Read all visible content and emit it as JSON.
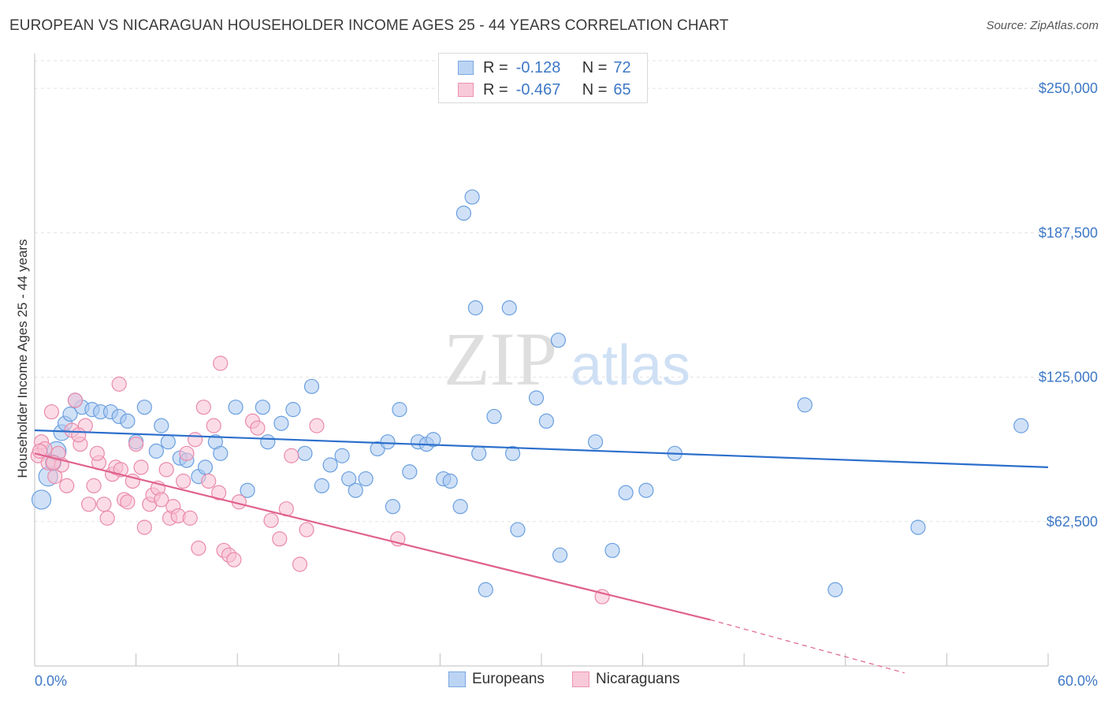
{
  "header": {
    "title": "EUROPEAN VS NICARAGUAN HOUSEHOLDER INCOME AGES 25 - 44 YEARS CORRELATION CHART",
    "source": "Source: ZipAtlas.com"
  },
  "watermark": {
    "zip": "ZIP",
    "atlas": "atlas"
  },
  "legend": {
    "rows": [
      {
        "r_label": "R =",
        "r_value": "-0.128",
        "n_label": "N =",
        "n_value": "72"
      },
      {
        "r_label": "R =",
        "r_value": "-0.467",
        "n_label": "N =",
        "n_value": "65"
      }
    ]
  },
  "bottom_legend": {
    "europeans": "Europeans",
    "nicaraguans": "Nicaraguans"
  },
  "colors": {
    "blue_fill": "#a9c8f0",
    "blue_stroke": "#6a9fe0",
    "blue_line": "#2c6fcc",
    "pink_fill": "#f7bfd1",
    "pink_stroke": "#ea8aab",
    "pink_line": "#e0628e",
    "tick_text": "#3d78c6",
    "grid": "#e3e3e3"
  },
  "chart_data": {
    "type": "scatter",
    "title": "EUROPEAN VS NICARAGUAN HOUSEHOLDER INCOME AGES 25 - 44 YEARS CORRELATION CHART",
    "xlabel": "",
    "ylabel": "Householder Income Ages 25 - 44 years",
    "xlim": [
      0,
      60
    ],
    "ylim": [
      0,
      262000
    ],
    "y_ticks": [
      62500,
      125000,
      187500,
      250000
    ],
    "y_tick_labels": [
      "$62,500",
      "$125,000",
      "$187,500",
      "$250,000"
    ],
    "x_tick_labels": [
      "0.0%",
      "60.0%"
    ],
    "grid": true,
    "legend_position": "top-center",
    "series": [
      {
        "name": "Europeans",
        "r": -0.128,
        "n": 72,
        "trend": {
          "x": [
            0,
            60
          ],
          "y": [
            102000,
            86000
          ],
          "dashed_from": null
        },
        "points": [
          [
            0.4,
            72000,
            12
          ],
          [
            0.8,
            82000,
            12
          ],
          [
            1.1,
            88000,
            10
          ],
          [
            1.3,
            93000,
            12
          ],
          [
            1.6,
            101000,
            10
          ],
          [
            1.8,
            105000,
            9
          ],
          [
            2.1,
            109000,
            9
          ],
          [
            2.8,
            112000,
            9
          ],
          [
            2.4,
            115000,
            9
          ],
          [
            3.4,
            111000,
            9
          ],
          [
            3.9,
            110000,
            9
          ],
          [
            4.5,
            110000,
            9
          ],
          [
            5.0,
            108000,
            9
          ],
          [
            5.5,
            106000,
            9
          ],
          [
            6.0,
            97000,
            9
          ],
          [
            6.5,
            112000,
            9
          ],
          [
            7.2,
            93000,
            9
          ],
          [
            7.5,
            104000,
            9
          ],
          [
            7.9,
            97000,
            9
          ],
          [
            8.6,
            90000,
            9
          ],
          [
            9.0,
            89000,
            9
          ],
          [
            9.7,
            82000,
            9
          ],
          [
            10.1,
            86000,
            9
          ],
          [
            10.7,
            97000,
            9
          ],
          [
            11.0,
            92000,
            9
          ],
          [
            11.9,
            112000,
            9
          ],
          [
            12.6,
            76000,
            9
          ],
          [
            13.8,
            97000,
            9
          ],
          [
            13.5,
            112000,
            9
          ],
          [
            14.6,
            105000,
            9
          ],
          [
            15.3,
            111000,
            9
          ],
          [
            16.0,
            92000,
            9
          ],
          [
            16.4,
            121000,
            9
          ],
          [
            17.0,
            78000,
            9
          ],
          [
            17.5,
            87000,
            9
          ],
          [
            18.2,
            91000,
            9
          ],
          [
            18.6,
            81000,
            9
          ],
          [
            19.0,
            76000,
            9
          ],
          [
            19.6,
            81000,
            9
          ],
          [
            20.3,
            94000,
            9
          ],
          [
            20.9,
            97000,
            9
          ],
          [
            21.2,
            69000,
            9
          ],
          [
            21.6,
            111000,
            9
          ],
          [
            22.2,
            84000,
            9
          ],
          [
            22.7,
            97000,
            9
          ],
          [
            23.2,
            96000,
            9
          ],
          [
            23.6,
            98000,
            9
          ],
          [
            24.2,
            81000,
            9
          ],
          [
            24.6,
            80000,
            9
          ],
          [
            25.2,
            69000,
            9
          ],
          [
            25.4,
            196000,
            9
          ],
          [
            25.9,
            203000,
            9
          ],
          [
            26.1,
            155000,
            9
          ],
          [
            26.7,
            33000,
            9
          ],
          [
            27.2,
            108000,
            9
          ],
          [
            28.1,
            155000,
            9
          ],
          [
            28.3,
            92000,
            9
          ],
          [
            28.6,
            59000,
            9
          ],
          [
            29.7,
            116000,
            9
          ],
          [
            30.3,
            106000,
            9
          ],
          [
            31.0,
            141000,
            9
          ],
          [
            31.1,
            48000,
            9
          ],
          [
            33.2,
            97000,
            9
          ],
          [
            34.2,
            50000,
            9
          ],
          [
            35.0,
            75000,
            9
          ],
          [
            36.2,
            76000,
            9
          ],
          [
            37.9,
            92000,
            9
          ],
          [
            45.6,
            113000,
            9
          ],
          [
            52.3,
            60000,
            9
          ],
          [
            47.4,
            33000,
            9
          ],
          [
            58.4,
            104000,
            9
          ],
          [
            26.3,
            92000,
            9
          ]
        ]
      },
      {
        "name": "Nicaraguans",
        "r": -0.467,
        "n": 65,
        "trend": {
          "x": [
            0,
            40,
            51.5
          ],
          "y": [
            92000,
            20000,
            -3000
          ],
          "dashed_from": 40
        },
        "points": [
          [
            0.2,
            91000,
            9
          ],
          [
            0.4,
            97000,
            9
          ],
          [
            0.6,
            94000,
            9
          ],
          [
            0.8,
            88000,
            9
          ],
          [
            1.0,
            110000,
            9
          ],
          [
            1.2,
            82000,
            9
          ],
          [
            1.4,
            92000,
            9
          ],
          [
            1.6,
            87000,
            9
          ],
          [
            1.9,
            78000,
            9
          ],
          [
            2.2,
            102000,
            9
          ],
          [
            2.4,
            115000,
            9
          ],
          [
            2.7,
            96000,
            9
          ],
          [
            3.0,
            104000,
            9
          ],
          [
            3.2,
            70000,
            9
          ],
          [
            3.5,
            78000,
            9
          ],
          [
            3.8,
            88000,
            9
          ],
          [
            4.1,
            70000,
            9
          ],
          [
            4.3,
            64000,
            9
          ],
          [
            4.6,
            83000,
            9
          ],
          [
            4.8,
            86000,
            9
          ],
          [
            5.0,
            122000,
            9
          ],
          [
            5.3,
            72000,
            9
          ],
          [
            5.5,
            71000,
            9
          ],
          [
            5.8,
            80000,
            9
          ],
          [
            6.0,
            96000,
            9
          ],
          [
            6.3,
            86000,
            9
          ],
          [
            6.5,
            60000,
            9
          ],
          [
            6.8,
            70000,
            9
          ],
          [
            7.0,
            74000,
            9
          ],
          [
            7.3,
            77000,
            9
          ],
          [
            7.5,
            72000,
            9
          ],
          [
            7.8,
            85000,
            9
          ],
          [
            8.0,
            64000,
            9
          ],
          [
            8.2,
            69000,
            9
          ],
          [
            8.5,
            65000,
            9
          ],
          [
            8.8,
            80000,
            9
          ],
          [
            9.0,
            92000,
            9
          ],
          [
            9.2,
            64000,
            9
          ],
          [
            9.5,
            98000,
            9
          ],
          [
            9.7,
            51000,
            9
          ],
          [
            10.0,
            112000,
            9
          ],
          [
            10.3,
            80000,
            9
          ],
          [
            10.6,
            104000,
            9
          ],
          [
            10.9,
            75000,
            9
          ],
          [
            11.0,
            131000,
            9
          ],
          [
            11.2,
            50000,
            9
          ],
          [
            11.5,
            48000,
            9
          ],
          [
            11.8,
            46000,
            9
          ],
          [
            12.1,
            71000,
            9
          ],
          [
            12.9,
            106000,
            9
          ],
          [
            13.2,
            103000,
            9
          ],
          [
            14.0,
            63000,
            9
          ],
          [
            14.5,
            55000,
            9
          ],
          [
            14.9,
            68000,
            9
          ],
          [
            15.2,
            91000,
            9
          ],
          [
            15.7,
            44000,
            9
          ],
          [
            16.1,
            59000,
            9
          ],
          [
            16.7,
            104000,
            9
          ],
          [
            21.5,
            55000,
            9
          ],
          [
            33.6,
            30000,
            9
          ],
          [
            0.3,
            93000,
            9
          ],
          [
            1.1,
            88000,
            9
          ],
          [
            2.6,
            100000,
            9
          ],
          [
            5.1,
            85000,
            9
          ],
          [
            3.7,
            92000,
            9
          ]
        ]
      }
    ]
  }
}
